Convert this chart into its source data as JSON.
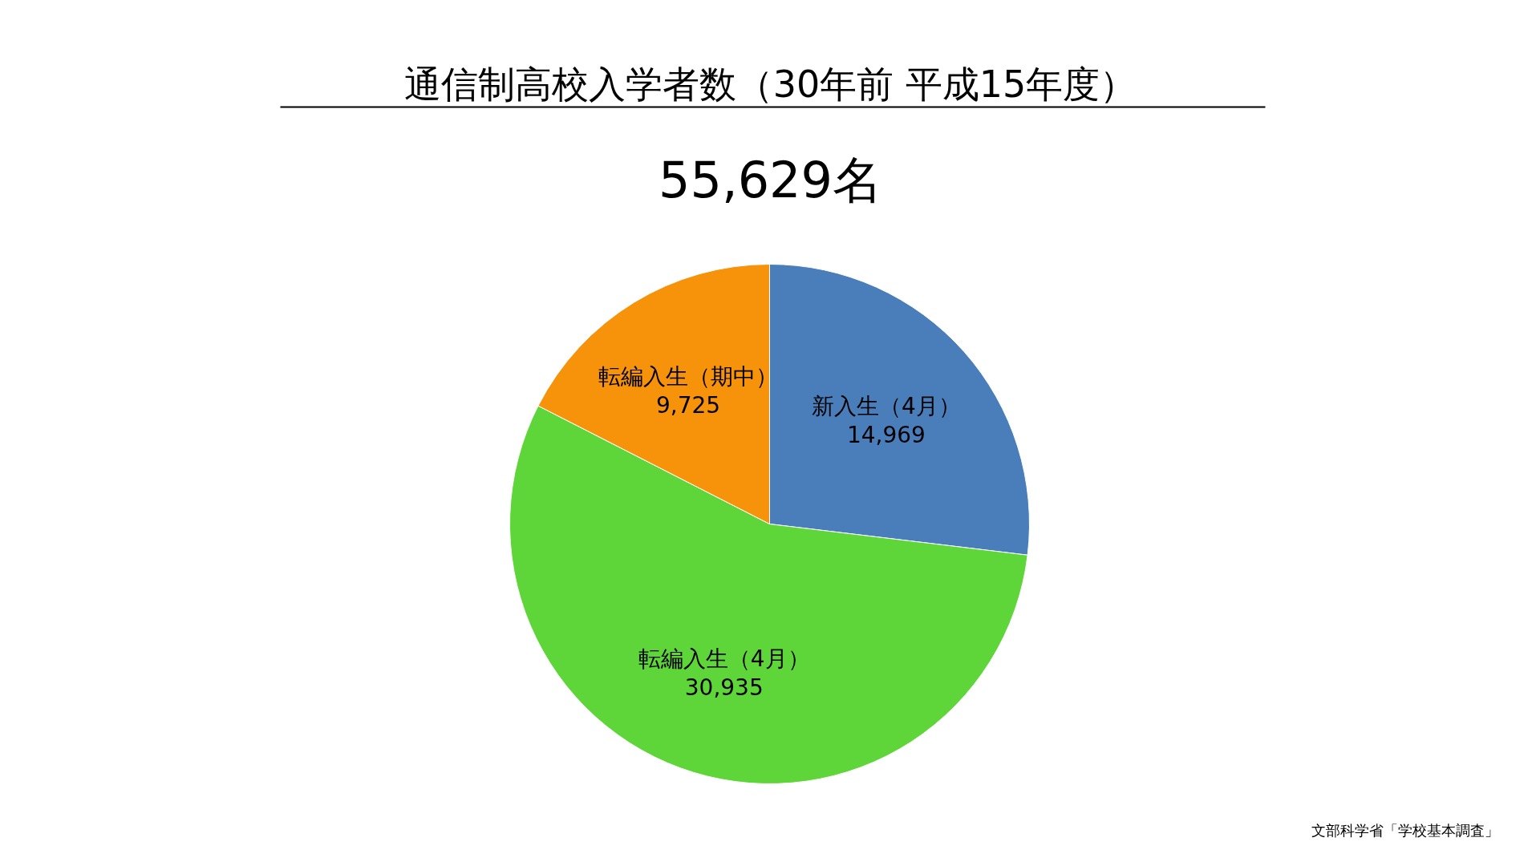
{
  "chart_data": {
    "type": "pie",
    "title": "通信制高校入学者数（30年前 平成15年度）",
    "subtitle": "55,629名",
    "categories": [
      "新入生（4月）",
      "転編入生（4月）",
      "転編入生（期中）"
    ],
    "values": [
      14969,
      30935,
      9725
    ],
    "colors": [
      "#4a7ebb",
      "#5ed63a",
      "#f7930a"
    ],
    "value_labels": [
      "14,969",
      "30,935",
      "9,725"
    ],
    "annotations": [
      "文部科学省「学校基本調査」"
    ]
  }
}
